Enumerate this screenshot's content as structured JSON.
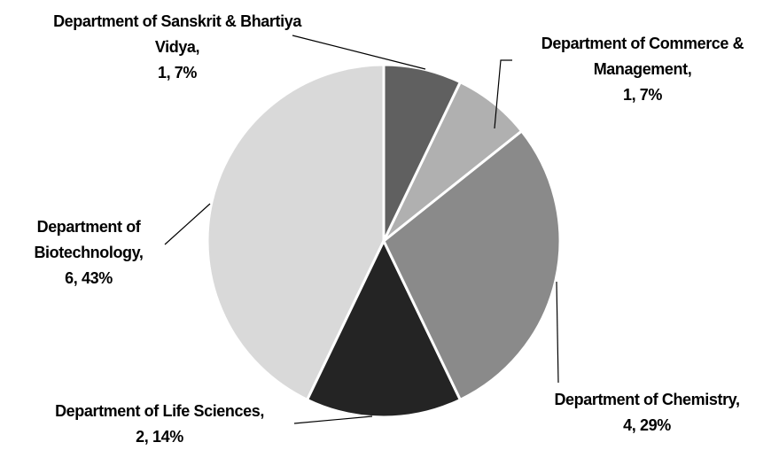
{
  "chart_data": {
    "type": "pie",
    "categories": [
      "Department of Sanskrit & Bhartiya Vidya,",
      "Department of Commerce & Management,",
      "Department of Chemistry,",
      "Department of Life Sciences,",
      "Department of Biotechnology,"
    ],
    "values": [
      1,
      1,
      4,
      2,
      6
    ],
    "value_labels": [
      "1, 7%",
      "1, 7%",
      "4, 29%",
      "2, 14%",
      "6, 43%"
    ],
    "colors": [
      "#606060",
      "#b0b0b0",
      "#8a8a8a",
      "#242424",
      "#d9d9d9"
    ]
  }
}
